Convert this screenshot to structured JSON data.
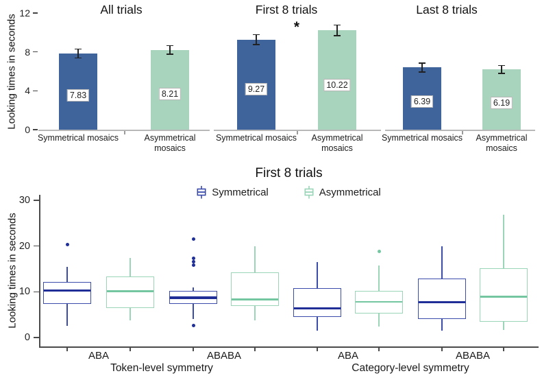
{
  "chart_data": [
    {
      "type": "bar",
      "ylabel": "Looking times in seconds",
      "ylim": [
        0,
        12
      ],
      "yticks": [
        0,
        4,
        8,
        12
      ],
      "colors": {
        "symmetrical": "#3f639b",
        "asymmetrical": "#a8d4be",
        "error_bar": "#222222"
      },
      "panels": [
        {
          "title": "All trials",
          "significance": null,
          "bars": [
            {
              "label": "Symmetrical mosaics",
              "series": "symmetrical",
              "value": 7.83,
              "value_label": "7.83",
              "error": 0.45
            },
            {
              "label": "Asymmetrical mosaics",
              "series": "asymmetrical",
              "value": 8.21,
              "value_label": "8.21",
              "error": 0.45
            }
          ]
        },
        {
          "title": "First 8 trials",
          "significance": "*",
          "bars": [
            {
              "label": "Symmetrical mosaics",
              "series": "symmetrical",
              "value": 9.27,
              "value_label": "9.27",
              "error": 0.5
            },
            {
              "label": "Asymmetrical mosaics",
              "series": "asymmetrical",
              "value": 10.22,
              "value_label": "10.22",
              "error": 0.55
            }
          ]
        },
        {
          "title": "Last 8 trials",
          "significance": null,
          "bars": [
            {
              "label": "Symmetrical mosaics",
              "series": "symmetrical",
              "value": 6.39,
              "value_label": "6.39",
              "error": 0.45
            },
            {
              "label": "Asymmetrical mosaics",
              "series": "asymmetrical",
              "value": 6.19,
              "value_label": "6.19",
              "error": 0.4
            }
          ]
        }
      ]
    },
    {
      "type": "boxplot",
      "title": "First 8 trials",
      "ylabel": "Looking times in seconds",
      "ylim": [
        0,
        30
      ],
      "yticks": [
        0,
        10,
        20,
        30
      ],
      "legend": [
        {
          "label": "Symmetrical",
          "color": "#3a4bab"
        },
        {
          "label": "Asymmetrical",
          "color": "#99d5b6"
        }
      ],
      "series_styles": {
        "Symmetrical": {
          "stroke": "#3a4bab",
          "median": "#1f2f97",
          "dot": "#1f2f97"
        },
        "Asymmetrical": {
          "stroke": "#99d5b6",
          "median": "#74c6a0",
          "dot": "#74c6a0"
        }
      },
      "group_axis": [
        {
          "label": "Token-level symmetry",
          "sublabels": [
            "ABA",
            "ABABA"
          ]
        },
        {
          "label": "Category-level symmetry",
          "sublabels": [
            "ABA",
            "ABABA"
          ]
        }
      ],
      "boxes": [
        {
          "group": "Token-level symmetry",
          "condition": "ABA",
          "series": "Symmetrical",
          "whisker_low": 2.5,
          "q1": 7.4,
          "median": 10.3,
          "q3": 12.1,
          "whisker_high": 15.4,
          "outliers": [
            20.4
          ]
        },
        {
          "group": "Token-level symmetry",
          "condition": "ABA",
          "series": "Asymmetrical",
          "whisker_low": 3.7,
          "q1": 6.5,
          "median": 10.1,
          "q3": 13.4,
          "whisker_high": 17.4,
          "outliers": []
        },
        {
          "group": "Token-level symmetry",
          "condition": "ABABA",
          "series": "Symmetrical",
          "whisker_low": 4.1,
          "q1": 7.3,
          "median": 8.7,
          "q3": 10.2,
          "whisker_high": 11.0,
          "outliers": [
            21.5,
            17.3,
            16.6,
            15.9,
            2.7
          ]
        },
        {
          "group": "Token-level symmetry",
          "condition": "ABABA",
          "series": "Asymmetrical",
          "whisker_low": 3.7,
          "q1": 6.9,
          "median": 8.3,
          "q3": 14.3,
          "whisker_high": 20.0,
          "outliers": []
        },
        {
          "group": "Category-level symmetry",
          "condition": "ABA",
          "series": "Symmetrical",
          "whisker_low": 1.5,
          "q1": 4.5,
          "median": 6.4,
          "q3": 10.8,
          "whisker_high": 16.5,
          "outliers": []
        },
        {
          "group": "Category-level symmetry",
          "condition": "ABA",
          "series": "Asymmetrical",
          "whisker_low": 2.4,
          "q1": 5.3,
          "median": 7.8,
          "q3": 10.2,
          "whisker_high": 15.7,
          "outliers": [
            18.9
          ]
        },
        {
          "group": "Category-level symmetry",
          "condition": "ABABA",
          "series": "Symmetrical",
          "whisker_low": 1.5,
          "q1": 4.0,
          "median": 7.7,
          "q3": 12.9,
          "whisker_high": 20.0,
          "outliers": []
        },
        {
          "group": "Category-level symmetry",
          "condition": "ABABA",
          "series": "Asymmetrical",
          "whisker_low": 1.7,
          "q1": 3.5,
          "median": 8.9,
          "q3": 15.2,
          "whisker_high": 26.8,
          "outliers": []
        }
      ]
    }
  ]
}
